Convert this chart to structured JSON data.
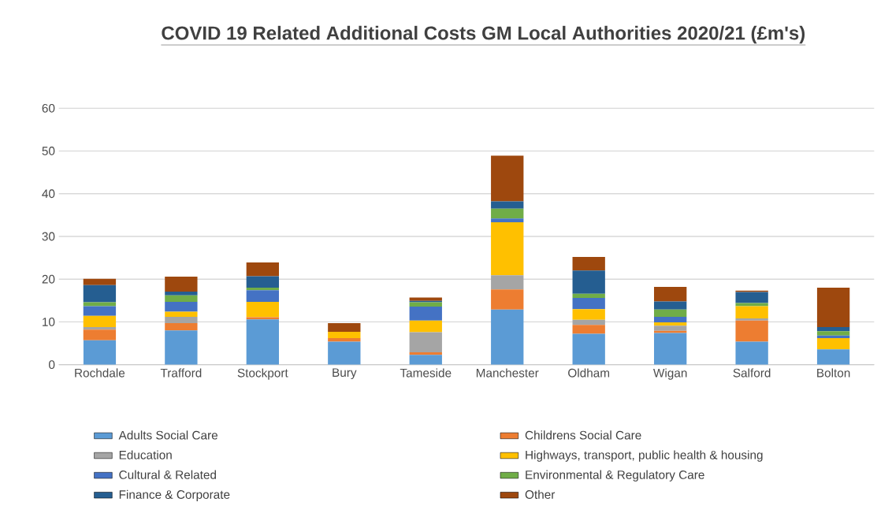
{
  "chart_data": {
    "type": "bar",
    "stacked": true,
    "title": "COVID 19 Related Additional Costs GM Local Authorities 2020/21 (£m's)",
    "categories": [
      "Rochdale",
      "Trafford",
      "Stockport",
      "Bury",
      "Tameside",
      "Manchester",
      "Oldham",
      "Wigan",
      "Salford",
      "Bolton"
    ],
    "series": [
      {
        "name": "Adults Social Care",
        "color": "#5b9bd5",
        "values": [
          5.7,
          8.0,
          10.6,
          5.4,
          2.3,
          12.9,
          7.2,
          7.4,
          5.4,
          3.6
        ]
      },
      {
        "name": "Childrens Social Care",
        "color": "#ed7d31",
        "values": [
          2.5,
          1.7,
          0.5,
          0.8,
          0.6,
          4.7,
          2.1,
          0.5,
          4.9,
          0
        ]
      },
      {
        "name": "Education",
        "color": "#a5a5a5",
        "values": [
          0.6,
          1.5,
          0,
          0,
          4.7,
          3.3,
          1.2,
          1.2,
          0.5,
          0
        ]
      },
      {
        "name": "Highways, transport, public health & housing",
        "color": "#ffc000",
        "values": [
          2.6,
          1.2,
          3.6,
          1.5,
          2.7,
          12.4,
          2.5,
          0.8,
          2.9,
          2.6
        ]
      },
      {
        "name": "Cultural & Related",
        "color": "#4472c4",
        "values": [
          2.3,
          2.3,
          2.7,
          0,
          3.3,
          0.9,
          2.6,
          1.3,
          0,
          0.6
        ]
      },
      {
        "name": "Environmental & Regulatory Care",
        "color": "#70ad47",
        "values": [
          0.9,
          1.5,
          0.6,
          0,
          1.0,
          2.3,
          1.0,
          1.7,
          0.7,
          1.0
        ]
      },
      {
        "name": "Finance & Corporate",
        "color": "#255e91",
        "values": [
          4.0,
          0.9,
          2.7,
          0,
          0.3,
          1.7,
          5.4,
          1.9,
          2.6,
          1.0
        ]
      },
      {
        "name": "Other",
        "color": "#9e480e",
        "values": [
          1.5,
          3.5,
          3.2,
          2.0,
          0.8,
          10.7,
          3.2,
          3.4,
          0.3,
          9.2
        ]
      }
    ],
    "ylim": [
      0,
      60
    ],
    "yticks": [
      0,
      10,
      20,
      30,
      40,
      50,
      60
    ],
    "grid": "y",
    "legend": "bottom"
  }
}
